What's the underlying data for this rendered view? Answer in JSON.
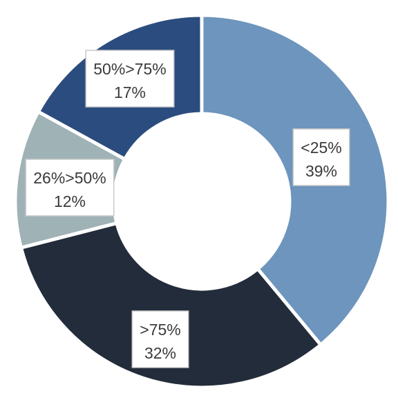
{
  "chart_data": {
    "type": "pie",
    "donut": true,
    "slices": [
      {
        "category": "<25%",
        "value": 39,
        "value_label": "39%",
        "color": "#6d95bd"
      },
      {
        "category": ">75%",
        "value": 32,
        "value_label": "32%",
        "color": "#232c3b"
      },
      {
        "category": "26%>50%",
        "value": 12,
        "value_label": "12%",
        "color": "#9fb2b6"
      },
      {
        "category": "50%>75%",
        "value": 17,
        "value_label": "17%",
        "color": "#2b4c7e"
      }
    ]
  }
}
